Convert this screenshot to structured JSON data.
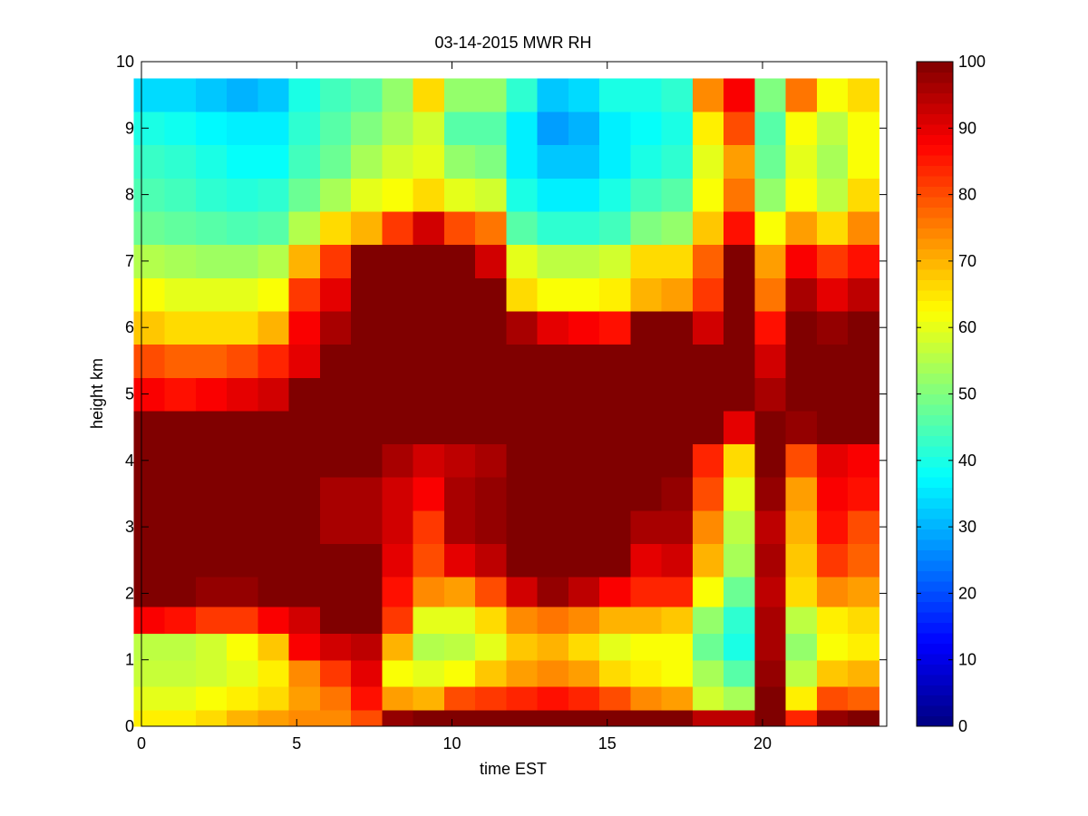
{
  "chart_data": {
    "type": "heatmap",
    "title": "03-14-2015 MWR RH",
    "xlabel": "time EST",
    "ylabel": "height km",
    "xlim": [
      0,
      24
    ],
    "ylim": [
      0,
      10
    ],
    "x_ticks": [
      0,
      5,
      10,
      15,
      20
    ],
    "y_ticks": [
      0,
      1,
      2,
      3,
      4,
      5,
      6,
      7,
      8,
      9,
      10
    ],
    "colorbar": {
      "label": "",
      "min": 0,
      "max": 100,
      "ticks": [
        0,
        10,
        20,
        30,
        40,
        50,
        60,
        70,
        80,
        90,
        100
      ],
      "colormap": "jet"
    },
    "grid": false,
    "x_centers": [
      0.25,
      1.25,
      2.25,
      3.25,
      4.25,
      5.25,
      6.25,
      7.25,
      8.25,
      9.25,
      10.25,
      11.25,
      12.25,
      13.25,
      14.25,
      15.25,
      16.25,
      17.25,
      18.25,
      19.25,
      20.25,
      21.25,
      22.25,
      23.25
    ],
    "height_profile_km": [
      0.1,
      0.4,
      0.8,
      1.2,
      1.6,
      2.0,
      2.5,
      3.0,
      3.5,
      4.0,
      4.5,
      5.0,
      5.5,
      6.0,
      6.5,
      7.0,
      7.5,
      8.0,
      8.5,
      9.0,
      9.5,
      9.75
    ],
    "rh_percent": [
      [
        64,
        60,
        57,
        56,
        88,
        100,
        100,
        100,
        100,
        100,
        100,
        88,
        80,
        68,
        62,
        55,
        48,
        45,
        43,
        40,
        34,
        34
      ],
      [
        64,
        60,
        57,
        56,
        86,
        100,
        100,
        100,
        100,
        100,
        100,
        86,
        78,
        66,
        60,
        54,
        47,
        44,
        42,
        39,
        34,
        34
      ],
      [
        66,
        62,
        58,
        58,
        82,
        98,
        100,
        100,
        100,
        100,
        100,
        88,
        78,
        66,
        60,
        53,
        46,
        42,
        40,
        37,
        32,
        32
      ],
      [
        70,
        64,
        60,
        62,
        82,
        98,
        100,
        100,
        100,
        100,
        100,
        90,
        80,
        66,
        60,
        53,
        45,
        41,
        38,
        36,
        30,
        30
      ],
      [
        72,
        66,
        64,
        68,
        88,
        100,
        100,
        100,
        100,
        100,
        100,
        92,
        84,
        70,
        62,
        55,
        46,
        42,
        38,
        36,
        32,
        32
      ],
      [
        74,
        72,
        74,
        88,
        92,
        100,
        100,
        100,
        100,
        100,
        100,
        100,
        90,
        88,
        82,
        70,
        55,
        48,
        44,
        42,
        40,
        40
      ],
      [
        74,
        76,
        82,
        92,
        100,
        100,
        100,
        96,
        96,
        100,
        100,
        100,
        100,
        96,
        90,
        82,
        66,
        54,
        48,
        46,
        44,
        44
      ],
      [
        80,
        86,
        90,
        94,
        100,
        100,
        100,
        96,
        96,
        100,
        100,
        100,
        100,
        100,
        100,
        100,
        70,
        60,
        54,
        50,
        46,
        46
      ],
      [
        98,
        72,
        62,
        70,
        82,
        86,
        90,
        92,
        92,
        96,
        100,
        100,
        100,
        100,
        100,
        100,
        82,
        62,
        58,
        54,
        52,
        52
      ],
      [
        100,
        70,
        60,
        55,
        60,
        74,
        80,
        82,
        88,
        92,
        100,
        100,
        100,
        100,
        100,
        100,
        92,
        66,
        60,
        58,
        66,
        66
      ],
      [
        100,
        80,
        62,
        56,
        60,
        72,
        90,
        96,
        96,
        94,
        100,
        100,
        100,
        100,
        100,
        100,
        80,
        60,
        52,
        46,
        52,
        52
      ],
      [
        100,
        82,
        68,
        60,
        66,
        80,
        94,
        98,
        98,
        96,
        100,
        100,
        100,
        100,
        100,
        92,
        76,
        58,
        50,
        46,
        52,
        52
      ],
      [
        100,
        84,
        72,
        68,
        74,
        92,
        100,
        100,
        100,
        100,
        100,
        100,
        100,
        96,
        66,
        60,
        46,
        40,
        36,
        36,
        42,
        42
      ],
      [
        100,
        86,
        74,
        70,
        76,
        98,
        100,
        100,
        100,
        100,
        100,
        100,
        100,
        90,
        62,
        56,
        42,
        36,
        32,
        28,
        32,
        32
      ],
      [
        100,
        84,
        72,
        66,
        74,
        94,
        100,
        100,
        100,
        100,
        100,
        100,
        100,
        88,
        62,
        56,
        42,
        36,
        32,
        30,
        34,
        34
      ],
      [
        100,
        80,
        66,
        60,
        70,
        88,
        100,
        100,
        100,
        100,
        100,
        100,
        100,
        86,
        64,
        58,
        44,
        40,
        36,
        36,
        40,
        40
      ],
      [
        100,
        74,
        64,
        62,
        70,
        84,
        90,
        96,
        100,
        100,
        100,
        100,
        100,
        100,
        70,
        66,
        50,
        44,
        40,
        38,
        40,
        40
      ],
      [
        100,
        72,
        62,
        62,
        68,
        84,
        92,
        96,
        98,
        100,
        100,
        100,
        100,
        100,
        72,
        66,
        52,
        46,
        42,
        40,
        42,
        42
      ],
      [
        94,
        58,
        54,
        48,
        52,
        62,
        70,
        74,
        80,
        84,
        100,
        100,
        100,
        92,
        82,
        78,
        68,
        62,
        60,
        64,
        74,
        74
      ],
      [
        94,
        54,
        46,
        40,
        42,
        48,
        54,
        56,
        60,
        66,
        90,
        100,
        100,
        100,
        100,
        100,
        86,
        76,
        72,
        80,
        88,
        88
      ],
      [
        100,
        100,
        98,
        96,
        96,
        94,
        96,
        94,
        98,
        100,
        100,
        96,
        92,
        86,
        76,
        72,
        62,
        52,
        48,
        46,
        50,
        50
      ],
      [
        84,
        64,
        56,
        52,
        56,
        66,
        68,
        70,
        72,
        80,
        98,
        100,
        100,
        100,
        96,
        88,
        72,
        62,
        60,
        62,
        76,
        76
      ],
      [
        98,
        80,
        68,
        62,
        64,
        74,
        82,
        86,
        88,
        90,
        100,
        100,
        100,
        98,
        90,
        82,
        66,
        56,
        54,
        56,
        62,
        62
      ],
      [
        100,
        78,
        70,
        64,
        66,
        72,
        78,
        80,
        86,
        88,
        100,
        100,
        100,
        100,
        94,
        86,
        74,
        66,
        62,
        62,
        66,
        66
      ]
    ]
  }
}
